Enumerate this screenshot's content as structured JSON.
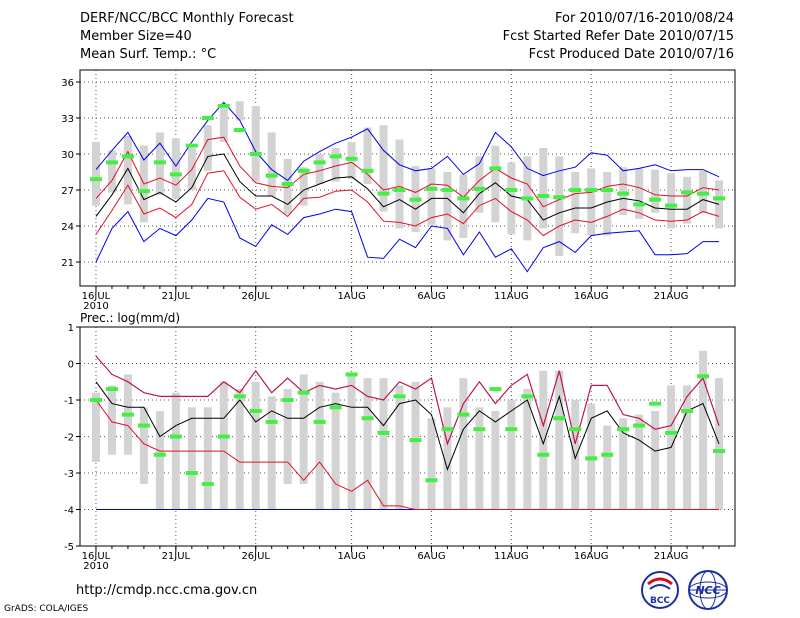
{
  "header": {
    "title": "DERF/NCC/BCC Monthly Forecast",
    "member_size": "Member Size=40",
    "variable": "Mean Surf. Temp.: °C",
    "period": "For 2010/07/16-2010/08/24",
    "started": "Fcst Started Refer Date 2010/07/15",
    "produced": "Fcst Produced Date 2010/07/16"
  },
  "footer": {
    "url": "http://cmdp.ncc.cma.gov.cn",
    "grads": "GrADS: COLA/IGES",
    "logo_bcc": "BCC",
    "logo_ncc": "NCC"
  },
  "colors": {
    "box": "#d3d3d3",
    "mean": "#000000",
    "std": "#e0102a",
    "extreme": "#0000e6",
    "marker": "#44ee44"
  },
  "chart_data": [
    {
      "type": "box-ensemble",
      "title": "Mean Surf. Temp.: °C",
      "x_tick_labels": [
        "16JUL",
        "21JUL",
        "26JUL",
        "1AUG",
        "6AUG",
        "11AUG",
        "16AUG",
        "21AUG"
      ],
      "x_tick_days": [
        0,
        5,
        10,
        16,
        21,
        26,
        31,
        36
      ],
      "year_label": "2010",
      "y_ticks": [
        21,
        24,
        27,
        30,
        33,
        36
      ],
      "ylim": [
        19,
        37
      ],
      "xlim": [
        -1,
        40
      ],
      "series": [
        {
          "name": "box_top",
          "values": [
            31,
            30.3,
            31.5,
            30.7,
            31.8,
            31.3,
            30.5,
            32.4,
            33.8,
            34.4,
            34,
            31.8,
            29.6,
            28.9,
            30,
            30.5,
            31,
            32.2,
            32.4,
            31.2,
            29,
            28.8,
            28.5,
            28.3,
            29.8,
            30.7,
            29.3,
            29.8,
            30.5,
            29.8,
            28.5,
            28.8,
            28.5,
            28.9,
            28.8,
            28.7,
            28.4,
            28.1,
            28.6,
            27.8
          ]
        },
        {
          "name": "box_bottom",
          "values": [
            25.7,
            26.8,
            25.8,
            24.3,
            26.6,
            26.3,
            27,
            28.6,
            31,
            32.8,
            27.7,
            26.5,
            25,
            25.7,
            27.5,
            27.7,
            27.9,
            27.5,
            25.2,
            23.8,
            23.5,
            24.1,
            22.8,
            23,
            25.1,
            24.3,
            23.3,
            22.8,
            23.8,
            21.5,
            23.4,
            23.2,
            23.2,
            24.9,
            24.6,
            25.1,
            23.8,
            24.2,
            25.1,
            23.8
          ]
        },
        {
          "name": "mean",
          "values": [
            24.8,
            26.6,
            28.8,
            26.2,
            26.8,
            26,
            27.2,
            29.8,
            30,
            27.7,
            26.5,
            26.5,
            25.8,
            27,
            27.5,
            28,
            28.1,
            27.1,
            25.6,
            26.2,
            25.4,
            26.3,
            26.3,
            25.1,
            26.7,
            27.6,
            26.5,
            26.2,
            24.5,
            25.1,
            25.5,
            25.5,
            26,
            26.3,
            26.1,
            25.5,
            25.4,
            25.4,
            26.2,
            25.8
          ]
        },
        {
          "name": "mean_plus_std",
          "values": [
            26.3,
            27.8,
            30.2,
            27.5,
            28,
            27.4,
            28.7,
            31.2,
            31.4,
            29,
            27.6,
            27.3,
            27.2,
            28.3,
            28.6,
            29,
            29.3,
            28.3,
            27,
            27.3,
            26.8,
            27.5,
            27.4,
            26.4,
            27.8,
            28.8,
            28,
            27.5,
            25.6,
            26.2,
            26.7,
            26.8,
            27.3,
            27.5,
            27.2,
            26.6,
            26.5,
            26.5,
            27.2,
            27
          ]
        },
        {
          "name": "mean_minus_std",
          "values": [
            23.3,
            25.3,
            27.4,
            25,
            25.5,
            24.7,
            25.8,
            28.4,
            28.6,
            26.4,
            25.4,
            25.8,
            24.8,
            26.3,
            26.4,
            26.9,
            27,
            26,
            24.4,
            24.3,
            24,
            24.7,
            25,
            24.2,
            25.7,
            26.3,
            25.2,
            24.5,
            23.2,
            24,
            24.5,
            24.3,
            24.8,
            25.4,
            25.1,
            24.5,
            24.4,
            24.5,
            25.2,
            24.8
          ]
        },
        {
          "name": "max",
          "values": [
            28.7,
            30.3,
            31.8,
            29.5,
            30.9,
            29,
            31,
            32.8,
            34.3,
            32.8,
            30.2,
            28.7,
            27.8,
            29.4,
            30.2,
            30.9,
            31.4,
            32.1,
            30.3,
            29.1,
            28.6,
            28.8,
            29.8,
            28.3,
            29.2,
            31.8,
            30.6,
            28.8,
            28.2,
            28.6,
            28.9,
            30.1,
            29.9,
            28.6,
            28.8,
            29.1,
            28.6,
            28.7,
            28.7,
            28.1
          ]
        },
        {
          "name": "min",
          "values": [
            21,
            23.8,
            25.2,
            22.7,
            23.8,
            23.2,
            24.5,
            26.3,
            26,
            23,
            22.3,
            24.1,
            23.3,
            24.7,
            25,
            25.4,
            25.2,
            21.4,
            21.3,
            22.9,
            22.2,
            24,
            23.8,
            21.6,
            23.5,
            21.4,
            22.1,
            20.2,
            22.2,
            22.7,
            21.8,
            23.2,
            23.4,
            23.5,
            23.6,
            21.6,
            21.6,
            21.7,
            22.7,
            22.7
          ]
        },
        {
          "name": "ensemble_marker",
          "values": [
            27.9,
            29.3,
            29.8,
            26.9,
            29.3,
            28.3,
            30.7,
            33,
            34,
            32,
            30,
            28.2,
            27.5,
            28.6,
            29.3,
            29.8,
            29.6,
            28.6,
            26.7,
            27,
            26.2,
            27.1,
            27,
            26.3,
            27.1,
            28.8,
            27,
            26.3,
            26.5,
            26.4,
            27,
            27,
            27,
            26.7,
            25.8,
            26.2,
            25.7,
            26.8,
            26.7,
            26.3
          ]
        }
      ]
    },
    {
      "type": "box-ensemble",
      "title": "Prec.: log(mm/d)",
      "x_tick_labels": [
        "16JUL",
        "21JUL",
        "26JUL",
        "1AUG",
        "6AUG",
        "11AUG",
        "16AUG",
        "21AUG"
      ],
      "x_tick_days": [
        0,
        5,
        10,
        16,
        21,
        26,
        31,
        36
      ],
      "year_label": "2010",
      "y_ticks": [
        -5,
        -4,
        -3,
        -2,
        -1,
        0,
        1
      ],
      "ylim": [
        -5,
        1
      ],
      "xlim": [
        -1,
        40
      ],
      "series": [
        {
          "name": "box_top",
          "values": [
            -0.8,
            -0.6,
            -0.3,
            -1.2,
            -1.3,
            -0.8,
            -1.2,
            -1.2,
            -0.5,
            -0.7,
            -0.5,
            -0.9,
            -0.7,
            -0.3,
            -0.5,
            -0.8,
            -0.3,
            -0.4,
            -0.4,
            -0.6,
            -0.5,
            -1.5,
            -1.2,
            -0.4,
            -1.2,
            -1.3,
            -1,
            -0.7,
            -0.2,
            -0.2,
            -1,
            -1.1,
            -1.7,
            -1.5,
            -1.4,
            -1.3,
            -0.6,
            -0.6,
            0.35,
            -0.4
          ]
        },
        {
          "name": "box_bottom",
          "values": [
            -2.7,
            -2.5,
            -2.5,
            -3.3,
            -4,
            -4,
            -4,
            -4,
            -4,
            -4,
            -4,
            -4,
            -3.3,
            -3.3,
            -4,
            -4,
            -4,
            -4,
            -4,
            -4,
            -4,
            -4,
            -4,
            -4,
            -4,
            -4,
            -4,
            -4,
            -4,
            -4,
            -4,
            -4,
            -4,
            -4,
            -4,
            -4,
            -4,
            -4,
            -4,
            -4
          ]
        },
        {
          "name": "mean",
          "values": [
            -0.5,
            -1.1,
            -1.2,
            -1.2,
            -2,
            -1.7,
            -1.5,
            -1.5,
            -1.5,
            -1,
            -1.6,
            -1.3,
            -1.5,
            -1.5,
            -1.2,
            -1.1,
            -1.2,
            -1.2,
            -1.7,
            -1.1,
            -1,
            -1.4,
            -2.9,
            -1.8,
            -1.3,
            -1.6,
            -1.3,
            -1,
            -2.2,
            -0.9,
            -2.6,
            -1.5,
            -1.3,
            -1.9,
            -2.1,
            -2.4,
            -2.3,
            -1.3,
            -1.1,
            -2.2
          ]
        },
        {
          "name": "mean_plus_std",
          "values": [
            0.2,
            -0.3,
            -0.5,
            -0.8,
            -0.9,
            -0.9,
            -0.9,
            -0.9,
            -0.5,
            -0.8,
            -0.2,
            -0.8,
            -0.4,
            -0.8,
            -0.6,
            -0.7,
            -0.6,
            -0.9,
            -1,
            -0.5,
            -0.7,
            -0.4,
            -2.2,
            -1.1,
            -0.5,
            -1.1,
            -0.6,
            -0.3,
            -1.7,
            -0.2,
            -2.2,
            -0.6,
            -0.6,
            -1.4,
            -1.5,
            -1.8,
            -1.7,
            -0.9,
            -0.4,
            -1.7
          ]
        },
        {
          "name": "mean_minus_std",
          "values": [
            -1,
            -1.6,
            -1.7,
            -2.2,
            -2.4,
            -2.4,
            -2.4,
            -2.4,
            -2.4,
            -2.7,
            -2.7,
            -2.7,
            -2.7,
            -3.2,
            -2.7,
            -3.3,
            -3.5,
            -3.2,
            -3.9,
            -3.9,
            -4,
            -4,
            -4,
            -4,
            -4,
            -4,
            -4,
            -4,
            -4,
            -4,
            -4,
            -4,
            -4,
            -4,
            -4,
            -4,
            -4,
            -4,
            -4,
            -4
          ]
        },
        {
          "name": "max",
          "values": [
            0.2,
            -0.3,
            -0.5,
            -0.8,
            -0.9,
            -0.9,
            -0.9,
            -0.9,
            -0.5,
            -0.8,
            -0.2,
            -0.8,
            -0.4,
            -0.8,
            -0.6,
            -0.7,
            -0.6,
            -0.9,
            -1,
            -0.5,
            -0.7,
            -0.4,
            -2.2,
            -1.1,
            -0.5,
            -1.1,
            -0.6,
            -0.3,
            -1.7,
            -0.2,
            -2.2,
            -0.6,
            -0.6,
            -1.4,
            -1.5,
            -1.8,
            -1.7,
            -0.9,
            -0.4,
            -1.7
          ]
        },
        {
          "name": "min",
          "values": [
            -4,
            -4,
            -4,
            -4,
            -4,
            -4,
            -4,
            -4,
            -4,
            -4,
            -4,
            -4,
            -4,
            -4,
            -4,
            -4,
            -4,
            -4,
            -4,
            -4,
            -4,
            -4,
            -4,
            -4,
            -4,
            -4,
            -4,
            -4,
            -4,
            -4,
            -4,
            -4,
            -4,
            -4,
            -4,
            -4,
            -4,
            -4,
            -4,
            -4
          ]
        },
        {
          "name": "ensemble_marker",
          "values": [
            -1,
            -0.7,
            -1.4,
            -1.7,
            -2.5,
            -2,
            -3,
            -3.3,
            -2,
            -0.9,
            -1.3,
            -1.6,
            -1,
            -0.8,
            -1.6,
            -1.2,
            -0.3,
            -1.5,
            -1.9,
            -0.9,
            -2.1,
            -3.2,
            -1.8,
            -1.4,
            -1.8,
            -0.7,
            -1.8,
            -0.9,
            -2.5,
            -1.5,
            -1.8,
            -2.6,
            -2.5,
            -1.8,
            -1.7,
            -1.1,
            -1.9,
            -1.3,
            -0.35,
            -2.4
          ]
        }
      ]
    }
  ]
}
